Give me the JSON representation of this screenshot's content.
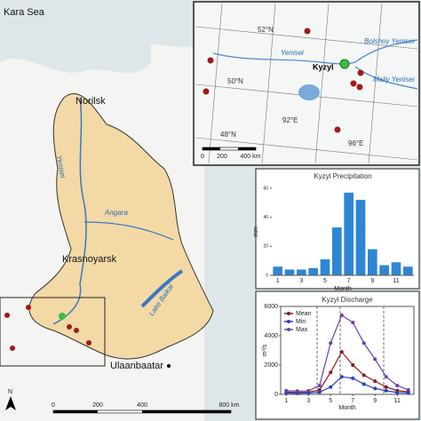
{
  "map": {
    "labels": [
      "Kara Sea",
      "Norilsk",
      "Yenisei",
      "Angara",
      "Krasnoyarsk",
      "Lake Baikal",
      "Ulaanbaatar"
    ],
    "scale": [
      "0",
      "200",
      "400",
      "800 km"
    ],
    "north": "N"
  },
  "inset": {
    "labels": [
      "52°N",
      "50°N",
      "48°N",
      "92°E",
      "96°E",
      "Bolshoy Yenisei",
      "Yenisei",
      "Maliy Yenisei",
      "Kyzyl"
    ],
    "scale": [
      "0",
      "200",
      "400 km"
    ]
  },
  "chart_data": [
    {
      "type": "bar",
      "title": "Kyzyl Precipitation",
      "x_label": "Month",
      "y_label": "mm",
      "categories": [
        1,
        null,
        3,
        null,
        5,
        null,
        7,
        null,
        9,
        null,
        11,
        null
      ],
      "values": [
        6,
        4,
        4,
        5,
        11,
        33,
        57,
        52,
        18,
        7,
        9,
        6
      ],
      "color": "#2e86d4",
      "ylim": [
        0,
        60
      ],
      "yticks": [
        0,
        20,
        40,
        60
      ]
    },
    {
      "type": "line",
      "title": "Kyzyl Discharge",
      "x_label": "Month",
      "y_label": "m³/s",
      "x": [
        1,
        2,
        3,
        4,
        5,
        6,
        7,
        8,
        9,
        10,
        11,
        12
      ],
      "xlim": [
        0.5,
        12.5
      ],
      "xticks": [
        1,
        3,
        5,
        7,
        9,
        11
      ],
      "ylim": [
        0,
        6000
      ],
      "yticks": [
        0,
        2000,
        4000,
        6000
      ],
      "series": [
        {
          "name": "Mean",
          "color": "#8b1a1a",
          "values": [
            150,
            140,
            150,
            300,
            1500,
            2900,
            2000,
            1300,
            900,
            500,
            250,
            180
          ]
        },
        {
          "name": "Min",
          "color": "#2b3fb8",
          "values": [
            80,
            70,
            80,
            150,
            500,
            1200,
            1100,
            700,
            400,
            250,
            120,
            100
          ]
        },
        {
          "name": "Max",
          "color": "#6a3fa8",
          "values": [
            250,
            230,
            240,
            600,
            3500,
            5400,
            4900,
            3500,
            2400,
            1200,
            600,
            300
          ]
        }
      ]
    }
  ]
}
